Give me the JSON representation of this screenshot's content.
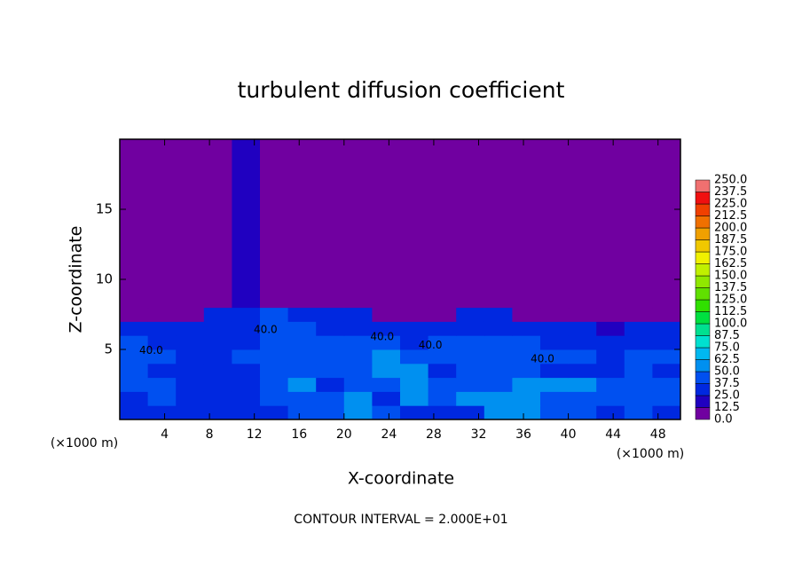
{
  "chart_data": {
    "type": "contour",
    "title": "turbulent diffusion coefficient",
    "xlabel": "X-coordinate",
    "ylabel": "Z-coordinate",
    "unit_labels": [
      "(×1000 m)",
      "(×1000 m)"
    ],
    "footnote": "CONTOUR INTERVAL = 2.000E+01",
    "xlim": [
      0,
      50
    ],
    "ylim": [
      0,
      20
    ],
    "xticks": [
      4,
      8,
      12,
      16,
      20,
      24,
      28,
      32,
      36,
      40,
      44,
      48
    ],
    "yticks": [
      5,
      10,
      15
    ],
    "x_edges": [
      0,
      2.5,
      5,
      7.5,
      10,
      12.5,
      15,
      17.5,
      20,
      22.5,
      25,
      27.5,
      30,
      32.5,
      35,
      37.5,
      40,
      42.5,
      45,
      47.5,
      50
    ],
    "z_edges": [
      0,
      1,
      2,
      3,
      4,
      5,
      6,
      7,
      8,
      20
    ],
    "field": [
      [
        30,
        35,
        30,
        30,
        30,
        35,
        40,
        45,
        60,
        40,
        35,
        30,
        35,
        50,
        55,
        45,
        40,
        35,
        40,
        35
      ],
      [
        35,
        40,
        30,
        30,
        30,
        40,
        45,
        40,
        50,
        35,
        50,
        45,
        50,
        55,
        50,
        45,
        40,
        40,
        45,
        40
      ],
      [
        40,
        45,
        30,
        30,
        35,
        40,
        50,
        35,
        45,
        40,
        50,
        45,
        45,
        40,
        50,
        50,
        50,
        45,
        40,
        45
      ],
      [
        40,
        35,
        35,
        30,
        35,
        40,
        45,
        40,
        40,
        50,
        50,
        35,
        40,
        45,
        40,
        35,
        35,
        35,
        40,
        35
      ],
      [
        45,
        40,
        30,
        35,
        40,
        45,
        40,
        45,
        40,
        50,
        45,
        40,
        45,
        40,
        40,
        45,
        40,
        35,
        40,
        40
      ],
      [
        45,
        35,
        30,
        35,
        35,
        45,
        40,
        40,
        40,
        45,
        35,
        40,
        45,
        40,
        45,
        35,
        35,
        30,
        35,
        35
      ],
      [
        35,
        30,
        30,
        35,
        35,
        40,
        40,
        35,
        35,
        30,
        25,
        30,
        35,
        35,
        35,
        25,
        25,
        20,
        25,
        25
      ],
      [
        0,
        0,
        0,
        30,
        35,
        40,
        35,
        25,
        30,
        10,
        5,
        10,
        30,
        25,
        10,
        5,
        5,
        0,
        10,
        5
      ],
      [
        0,
        0,
        0,
        5,
        15,
        10,
        0,
        0,
        0,
        0,
        0,
        0,
        0,
        0,
        0,
        0,
        0,
        0,
        0,
        0
      ]
    ],
    "contour_labels": [
      {
        "x": 2.8,
        "z": 4.9,
        "value": 40,
        "label": "40.0"
      },
      {
        "x": 13,
        "z": 6.4,
        "value": 40,
        "label": "40.0"
      },
      {
        "x": 23.4,
        "z": 5.9,
        "value": 40,
        "label": "40.0"
      },
      {
        "x": 27.7,
        "z": 5.3,
        "value": 40,
        "label": "40.0"
      },
      {
        "x": 37.7,
        "z": 4.3,
        "value": 40,
        "label": "40.0"
      }
    ],
    "colorbar_ticks": [
      {
        "value": 0,
        "label": "0.0"
      },
      {
        "value": 12.5,
        "label": "12.5"
      },
      {
        "value": 25,
        "label": "25.0"
      },
      {
        "value": 37.5,
        "label": "37.5"
      },
      {
        "value": 50,
        "label": "50.0"
      },
      {
        "value": 62.5,
        "label": "62.5"
      },
      {
        "value": 75,
        "label": "75.0"
      },
      {
        "value": 87.5,
        "label": "87.5"
      },
      {
        "value": 100,
        "label": "100.0"
      },
      {
        "value": 112.5,
        "label": "112.5"
      },
      {
        "value": 125,
        "label": "125.0"
      },
      {
        "value": 137.5,
        "label": "137.5"
      },
      {
        "value": 150,
        "label": "150.0"
      },
      {
        "value": 162.5,
        "label": "162.5"
      },
      {
        "value": 175,
        "label": "175.0"
      },
      {
        "value": 187.5,
        "label": "187.5"
      },
      {
        "value": 200,
        "label": "200.0"
      },
      {
        "value": 212.5,
        "label": "212.5"
      },
      {
        "value": 225,
        "label": "225.0"
      },
      {
        "value": 237.5,
        "label": "237.5"
      },
      {
        "value": 250,
        "label": "250.0"
      }
    ],
    "colors": [
      "#7000a0",
      "#2000c0",
      "#0028e0",
      "#0050f0",
      "#0090f0",
      "#00b8f0",
      "#00e0d0",
      "#00e090",
      "#00e040",
      "#30e000",
      "#60e000",
      "#90e800",
      "#c0f000",
      "#f0f000",
      "#f0c800",
      "#f0a000",
      "#f07000",
      "#f04000",
      "#f01010",
      "#f07070"
    ]
  }
}
